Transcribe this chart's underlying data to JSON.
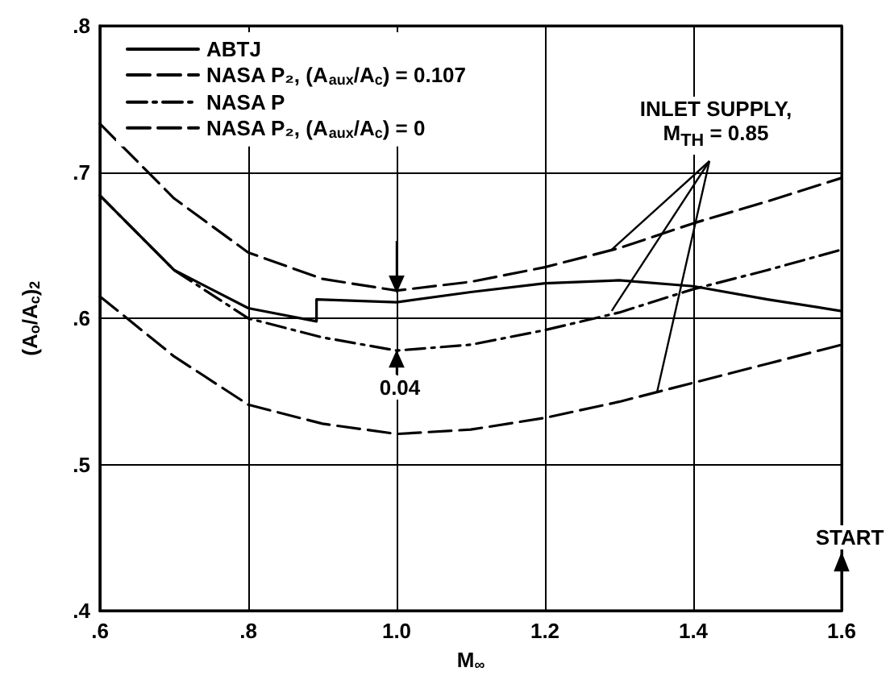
{
  "chart_data": {
    "type": "line",
    "xlabel": "M$_{∞}$",
    "ylabel": "(A$_{o}$/A$_{c}$)$_{2}$",
    "xlim": [
      0.6,
      1.6
    ],
    "ylim": [
      0.4,
      0.8
    ],
    "xticks": [
      {
        "value": 0.6,
        "label": ".6"
      },
      {
        "value": 0.8,
        "label": ".8"
      },
      {
        "value": 1.0,
        "label": "1.0"
      },
      {
        "value": 1.2,
        "label": "1.2"
      },
      {
        "value": 1.4,
        "label": "1.4"
      },
      {
        "value": 1.6,
        "label": "1.6"
      }
    ],
    "yticks": [
      {
        "value": 0.4,
        "label": ".4"
      },
      {
        "value": 0.5,
        "label": ".5"
      },
      {
        "value": 0.6,
        "label": ".6"
      },
      {
        "value": 0.7,
        "label": ".7"
      },
      {
        "value": 0.8,
        "label": ".8"
      }
    ],
    "grid": true,
    "legend": "top left",
    "marker": "none",
    "annotations": [
      {
        "text": "0.04",
        "x": 1.0,
        "y": 0.578
      },
      {
        "text": "INLET SUPPLY, M$_{TH}$ = 0.85",
        "x": 1.29,
        "y": 0.647
      },
      "START"
    ],
    "series": [
      {
        "name": "ABTJ",
        "color": "#000000",
        "line_style": "solid",
        "x": [
          0.6,
          0.7,
          0.8,
          0.892,
          0.892,
          1.0,
          1.1,
          1.2,
          1.3,
          1.4,
          1.5,
          1.6
        ],
        "values": [
          0.684,
          0.633,
          0.607,
          0.598,
          0.613,
          0.611,
          0.618,
          0.624,
          0.626,
          0.622,
          0.613,
          0.605
        ]
      },
      {
        "name": "NASA P₂, (A$_{aux}$/A$_{c}$) = 0.107",
        "color": "#000000",
        "line_style": "dashed",
        "x": [
          0.6,
          0.7,
          0.8,
          0.9,
          1.0,
          1.1,
          1.2,
          1.3,
          1.4,
          1.5,
          1.6
        ],
        "values": [
          0.733,
          0.682,
          0.645,
          0.627,
          0.619,
          0.625,
          0.635,
          0.648,
          0.665,
          0.68,
          0.696
        ]
      },
      {
        "name": "NASA P",
        "color": "#000000",
        "line_style": "dashdot",
        "x": [
          0.6,
          0.7,
          0.8,
          0.9,
          1.0,
          1.1,
          1.2,
          1.3,
          1.4,
          1.5,
          1.6
        ],
        "values": [
          0.684,
          0.633,
          0.6,
          0.587,
          0.578,
          0.582,
          0.592,
          0.604,
          0.62,
          0.633,
          0.647
        ]
      },
      {
        "name": "NASA P₂, (A$_{aux}$/A$_{c}$) = 0",
        "color": "#000000",
        "line_style": "dashed",
        "x": [
          0.6,
          0.7,
          0.8,
          0.9,
          1.0,
          1.1,
          1.2,
          1.3,
          1.4,
          1.5,
          1.6
        ],
        "values": [
          0.615,
          0.574,
          0.541,
          0.528,
          0.521,
          0.524,
          0.532,
          0.543,
          0.556,
          0.569,
          0.582
        ]
      }
    ]
  }
}
